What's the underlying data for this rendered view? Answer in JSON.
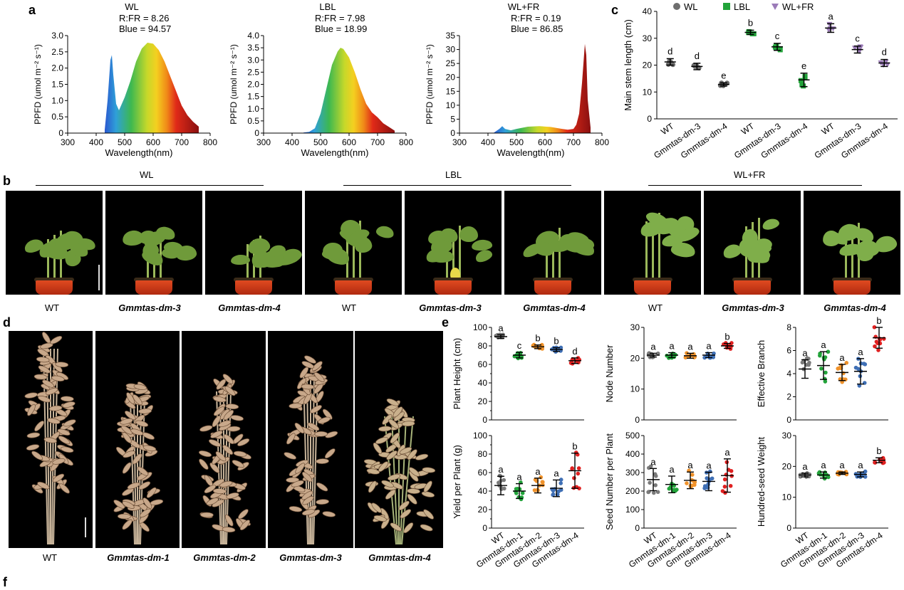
{
  "figure": {
    "letters": {
      "a": "a",
      "b": "b",
      "c": "c",
      "d": "d",
      "e": "e",
      "f": "f"
    }
  },
  "panel_a": {
    "x_label": "Wavelength(nm)",
    "y_label": "PPFD (umol m⁻² s⁻¹)",
    "x_ticks": [
      "300",
      "400",
      "500",
      "600",
      "700",
      "800"
    ],
    "spectra": [
      {
        "title": "WL",
        "ratio": "R:FR = 8.26",
        "blue": "Blue = 94.57",
        "y_ticks": [
          "0",
          "0.5",
          "1.0",
          "1.5",
          "2.0",
          "2.5",
          "3.0"
        ]
      },
      {
        "title": "LBL",
        "ratio": "R:FR = 7.98",
        "blue": "Blue = 18.99",
        "y_ticks": [
          "0",
          "0.5",
          "1.0",
          "1.5",
          "2.0",
          "2.5",
          "3.0",
          "3.5",
          "4.0"
        ]
      },
      {
        "title": "WL+FR",
        "ratio": "R:FR = 0.19",
        "blue": "Blue = 86.85",
        "y_ticks": [
          "0",
          "5",
          "10",
          "15",
          "20",
          "25",
          "30",
          "35"
        ]
      }
    ]
  },
  "panel_b": {
    "groups": [
      "WL",
      "LBL",
      "WL+FR"
    ],
    "labels": [
      "WT",
      "Gmmtas-dm-3",
      "Gmmtas-dm-4",
      "WT",
      "Gmmtas-dm-3",
      "Gmmtas-dm-4",
      "WT",
      "Gmmtas-dm-3",
      "Gmmtas-dm-4"
    ]
  },
  "panel_d": {
    "labels": [
      "WT",
      "Gmmtas-dm-1",
      "Gmmtas-dm-2",
      "Gmmtas-dm-3",
      "Gmmtas-dm-4"
    ]
  },
  "chart_data": [
    {
      "id": "a-WL",
      "type": "area",
      "title": "WL",
      "xlabel": "Wavelength(nm)",
      "ylabel": "PPFD (umol m⁻² s⁻¹)",
      "xlim": [
        300,
        800
      ],
      "ylim": [
        0,
        3.0
      ],
      "x": [
        430,
        440,
        450,
        455,
        460,
        470,
        480,
        500,
        520,
        540,
        560,
        580,
        600,
        620,
        640,
        660,
        680,
        700,
        720,
        740,
        760
      ],
      "y": [
        0.1,
        1.0,
        2.25,
        2.4,
        1.8,
        0.9,
        0.7,
        1.1,
        1.6,
        2.2,
        2.6,
        2.78,
        2.75,
        2.55,
        2.2,
        1.75,
        1.3,
        0.85,
        0.55,
        0.35,
        0.2
      ]
    },
    {
      "id": "a-LBL",
      "type": "area",
      "title": "LBL",
      "xlabel": "Wavelength(nm)",
      "ylabel": "PPFD (umol m⁻² s⁻¹)",
      "xlim": [
        300,
        800
      ],
      "ylim": [
        0,
        4.0
      ],
      "x": [
        440,
        460,
        480,
        500,
        520,
        540,
        560,
        570,
        580,
        600,
        620,
        640,
        660,
        680,
        700,
        720,
        740,
        760
      ],
      "y": [
        0.02,
        0.05,
        0.2,
        0.8,
        1.8,
        2.8,
        3.35,
        3.5,
        3.45,
        3.1,
        2.5,
        1.8,
        1.2,
        0.85,
        0.65,
        0.4,
        0.25,
        0.1
      ]
    },
    {
      "id": "a-WLFR",
      "type": "area",
      "title": "WL+FR",
      "xlabel": "Wavelength(nm)",
      "ylabel": "PPFD (umol m⁻² s⁻¹)",
      "xlim": [
        300,
        800
      ],
      "ylim": [
        0,
        35
      ],
      "x": [
        420,
        440,
        450,
        460,
        480,
        500,
        540,
        580,
        620,
        660,
        680,
        700,
        710,
        720,
        730,
        740,
        745,
        750,
        760
      ],
      "y": [
        0.1,
        1.5,
        2.5,
        1.5,
        1.0,
        1.5,
        2.3,
        2.5,
        2.2,
        1.5,
        1.2,
        1.5,
        3,
        7,
        18,
        32,
        28,
        12,
        2
      ]
    },
    {
      "id": "c",
      "type": "scatter",
      "title": "",
      "ylabel": "Main stem length (cm)",
      "ylim": [
        0,
        40
      ],
      "y_ticks": [
        "0",
        "10",
        "20",
        "30",
        "40"
      ],
      "legend": [
        "WL",
        "LBL",
        "WL+FR"
      ],
      "categories": [
        "WT",
        "Gmmtas-dm-3",
        "Gmmtas-dm-4",
        "WT",
        "Gmmtas-dm-3",
        "Gmmtas-dm-4",
        "WT",
        "Gmmtas-dm-3",
        "Gmmtas-dm-4"
      ],
      "means": [
        21.2,
        19.5,
        12.8,
        32.2,
        26.8,
        14.5,
        33.8,
        25.8,
        20.8
      ],
      "sd": [
        1.2,
        1.2,
        0.6,
        0.8,
        1.3,
        2.5,
        1.6,
        1.3,
        1.3
      ],
      "letters": [
        "d",
        "d",
        "e",
        "b",
        "c",
        "e",
        "a",
        "c",
        "d"
      ],
      "groups": [
        "WL",
        "WL",
        "WL",
        "LBL",
        "LBL",
        "LBL",
        "WL+FR",
        "WL+FR",
        "WL+FR"
      ]
    },
    {
      "id": "e-plant-height",
      "type": "scatter",
      "ylabel": "Plant Height (cm)",
      "ylim": [
        0,
        100
      ],
      "y_ticks": [
        "0",
        "10",
        "20",
        "30",
        "40",
        "50",
        "60",
        "70",
        "80",
        "90",
        "100"
      ],
      "categories": [
        "WT",
        "Gmmtas-dm-1",
        "Gmmtas-dm-2",
        "Gmmtas-dm-3",
        "Gmmtas-dm-4"
      ],
      "means": [
        90,
        70,
        79,
        76,
        64
      ],
      "sd": [
        2,
        3,
        2,
        2,
        3
      ],
      "letters": [
        "a",
        "c",
        "b",
        "b",
        "d"
      ]
    },
    {
      "id": "e-node-number",
      "type": "scatter",
      "ylabel": "Node Number",
      "ylim": [
        0,
        30
      ],
      "y_ticks": [
        "0",
        "10",
        "20",
        "30"
      ],
      "categories": [
        "WT",
        "Gmmtas-dm-1",
        "Gmmtas-dm-2",
        "Gmmtas-dm-3",
        "Gmmtas-dm-4"
      ],
      "means": [
        21,
        21,
        20.8,
        21,
        24
      ],
      "sd": [
        0.6,
        0.8,
        0.8,
        0.8,
        0.8
      ],
      "letters": [
        "a",
        "a",
        "a",
        "a",
        "b"
      ]
    },
    {
      "id": "e-effective-branch",
      "type": "scatter",
      "ylabel": "Effective Branch",
      "ylim": [
        0,
        8
      ],
      "y_ticks": [
        "0",
        "2",
        "4",
        "6",
        "8"
      ],
      "categories": [
        "WT",
        "Gmmtas-dm-1",
        "Gmmtas-dm-2",
        "Gmmtas-dm-3",
        "Gmmtas-dm-4"
      ],
      "means": [
        4.4,
        4.7,
        4.1,
        4.2,
        7.1
      ],
      "sd": [
        0.8,
        1.2,
        0.7,
        1.1,
        0.9
      ],
      "letters": [
        "a",
        "a",
        "a",
        "a",
        "b"
      ]
    },
    {
      "id": "e-yield",
      "type": "scatter",
      "ylabel": "Yield per Plant (g)",
      "ylim": [
        0,
        100
      ],
      "y_ticks": [
        "0",
        "10",
        "20",
        "30",
        "40",
        "50",
        "60",
        "70",
        "80",
        "90",
        "100"
      ],
      "categories": [
        "WT",
        "Gmmtas-dm-1",
        "Gmmtas-dm-2",
        "Gmmtas-dm-3",
        "Gmmtas-dm-4"
      ],
      "means": [
        46,
        40,
        46,
        43,
        62
      ],
      "sd": [
        10,
        8,
        8,
        9,
        19
      ],
      "letters": [
        "a",
        "a",
        "a",
        "a",
        "b"
      ]
    },
    {
      "id": "e-seed-number",
      "type": "scatter",
      "ylabel": "Seed Number per Plant",
      "ylim": [
        0,
        500
      ],
      "y_ticks": [
        "0",
        "100",
        "200",
        "300",
        "400",
        "500"
      ],
      "categories": [
        "WT",
        "Gmmtas-dm-1",
        "Gmmtas-dm-2",
        "Gmmtas-dm-3",
        "Gmmtas-dm-4"
      ],
      "means": [
        262,
        236,
        258,
        252,
        284
      ],
      "sd": [
        60,
        45,
        45,
        50,
        90
      ],
      "letters": [
        "a",
        "a",
        "a",
        "a",
        "a"
      ]
    },
    {
      "id": "e-hundred-seed",
      "type": "scatter",
      "ylabel": "Hundred-seed Weight",
      "ylim": [
        0,
        30
      ],
      "y_ticks": [
        "0",
        "10",
        "20",
        "30"
      ],
      "categories": [
        "WT",
        "Gmmtas-dm-1",
        "Gmmtas-dm-2",
        "Gmmtas-dm-3",
        "Gmmtas-dm-4"
      ],
      "means": [
        17.2,
        17.2,
        17.8,
        17.4,
        22
      ],
      "sd": [
        0.6,
        1,
        0.4,
        0.8,
        0.8
      ],
      "letters": [
        "a",
        "a",
        "a",
        "a",
        "b"
      ]
    }
  ],
  "colors": {
    "wl": "#6e6e6e",
    "lbl": "#22a33a",
    "wlfr": "#9b7bb8",
    "e_series": [
      "#7a7a7a",
      "#22a33a",
      "#f0922a",
      "#3f6fb5",
      "#e02020"
    ]
  }
}
